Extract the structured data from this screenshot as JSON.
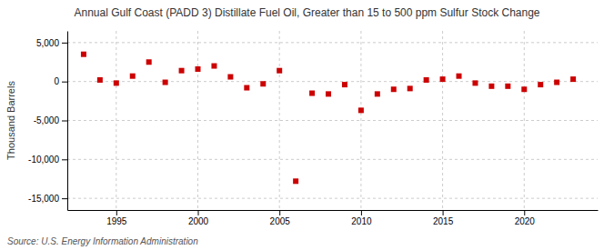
{
  "chart_data": {
    "type": "scatter",
    "title": "Annual Gulf Coast (PADD 3) Distillate Fuel Oil, Greater than 15 to 500 ppm Sulfur Stock Change",
    "ylabel": "Thousand Barrels",
    "source": "Source: U.S. Energy Information Administration",
    "x": [
      1993,
      1994,
      1995,
      1996,
      1997,
      1998,
      1999,
      2000,
      2001,
      2002,
      2003,
      2004,
      2005,
      2006,
      2007,
      2008,
      2009,
      2010,
      2011,
      2012,
      2013,
      2014,
      2015,
      2016,
      2017,
      2018,
      2019,
      2020,
      2021,
      2022,
      2023
    ],
    "values": [
      3500,
      200,
      -200,
      700,
      2500,
      -100,
      1400,
      1600,
      2000,
      600,
      -800,
      -300,
      1400,
      -12800,
      -1500,
      -1600,
      -400,
      -3700,
      -1600,
      -1000,
      -900,
      200,
      300,
      700,
      -200,
      -600,
      -600,
      -1000,
      -400,
      -100,
      300
    ],
    "color": "#cc0000",
    "marker": "square",
    "xlim": [
      1992,
      2024.5
    ],
    "xticks": [
      1995,
      2000,
      2005,
      2010,
      2015,
      2020
    ],
    "ylim": [
      -16500,
      6500
    ],
    "yticks": [
      {
        "value": 5000,
        "label": "5,000"
      },
      0,
      {
        "value": -5000,
        "label": "-5,000"
      },
      {
        "value": -10000,
        "label": "-10,000"
      },
      {
        "value": -15000,
        "label": "-15,000"
      }
    ],
    "grid": true
  }
}
